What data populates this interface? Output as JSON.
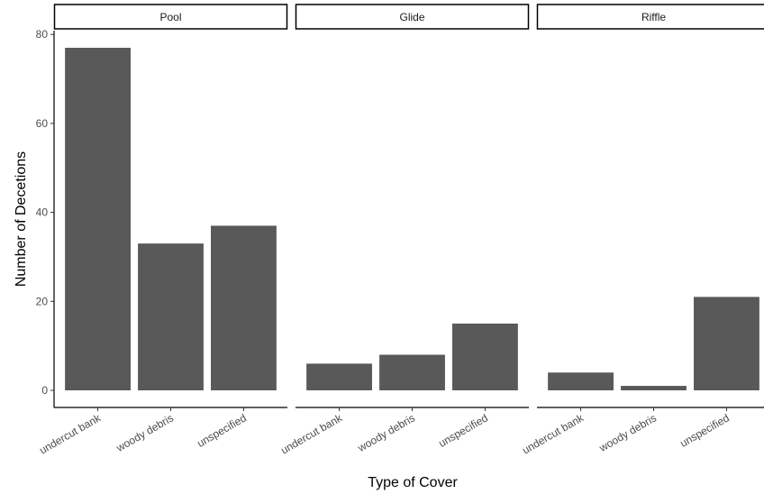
{
  "chart_data": {
    "type": "bar",
    "x_label": "Type of Cover",
    "y_label": "Number of Decetions",
    "categories": [
      "undercut bank",
      "woody debris",
      "unspecified"
    ],
    "color": "#595959",
    "ylim": [
      -3.85,
      80.85
    ],
    "yticks": [
      0,
      20,
      40,
      60,
      80
    ],
    "facets": [
      {
        "title": "Pool",
        "values": [
          77,
          33,
          37
        ]
      },
      {
        "title": "Glide",
        "values": [
          6,
          8,
          15
        ]
      },
      {
        "title": "Riffle",
        "values": [
          4,
          1,
          21
        ]
      }
    ]
  }
}
